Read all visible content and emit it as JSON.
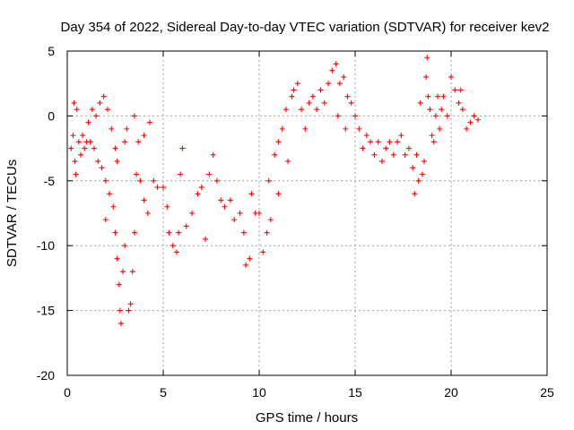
{
  "chart_data": {
    "type": "scatter",
    "title": "Day 354 of 2022, Sidereal Day-to-day VTEC variation (SDTVAR) for receiver kev2",
    "xlabel": "GPS time / hours",
    "ylabel": "SDTVAR / TECUs",
    "xlim": [
      0,
      25
    ],
    "ylim": [
      -20,
      5
    ],
    "xticks": [
      0,
      5,
      10,
      15,
      20,
      25
    ],
    "yticks": [
      5,
      0,
      -5,
      -10,
      -15,
      -20
    ],
    "grid": true,
    "marker": "+",
    "series": [
      {
        "name": "SDTVAR",
        "color": "#ff0000",
        "points": [
          [
            0.2,
            -2.5
          ],
          [
            0.3,
            -1.5
          ],
          [
            0.35,
            1.0
          ],
          [
            0.4,
            -3.5
          ],
          [
            0.45,
            -4.5
          ],
          [
            0.5,
            0.5
          ],
          [
            0.6,
            -2.0
          ],
          [
            0.7,
            -3.0
          ],
          [
            0.8,
            -1.5
          ],
          [
            0.9,
            -2.5
          ],
          [
            1.0,
            -2.0
          ],
          [
            1.1,
            -0.5
          ],
          [
            1.2,
            -2.0
          ],
          [
            1.3,
            0.5
          ],
          [
            1.4,
            -2.5
          ],
          [
            1.5,
            0.0
          ],
          [
            1.6,
            -3.5
          ],
          [
            1.7,
            1.0
          ],
          [
            1.8,
            -4.0
          ],
          [
            1.9,
            1.5
          ],
          [
            2.0,
            -5.0
          ],
          [
            2.0,
            -8.0
          ],
          [
            2.1,
            0.5
          ],
          [
            2.2,
            -6.0
          ],
          [
            2.3,
            -1.0
          ],
          [
            2.4,
            -7.0
          ],
          [
            2.5,
            -2.5
          ],
          [
            2.5,
            -9.0
          ],
          [
            2.6,
            -3.5
          ],
          [
            2.6,
            -11.0
          ],
          [
            2.7,
            -13.0
          ],
          [
            2.75,
            -15.0
          ],
          [
            2.8,
            -16.0
          ],
          [
            2.9,
            -12.0
          ],
          [
            3.0,
            -10.0
          ],
          [
            3.0,
            -2.0
          ],
          [
            3.1,
            -1.0
          ],
          [
            3.2,
            -15.0
          ],
          [
            3.3,
            -14.5
          ],
          [
            3.4,
            -12.0
          ],
          [
            3.5,
            -9.0
          ],
          [
            3.5,
            0.0
          ],
          [
            3.6,
            -4.5
          ],
          [
            3.7,
            -2.0
          ],
          [
            3.8,
            -5.0
          ],
          [
            4.0,
            -6.5
          ],
          [
            4.0,
            -1.5
          ],
          [
            4.2,
            -7.5
          ],
          [
            4.3,
            -0.5
          ],
          [
            4.5,
            -5.0
          ],
          [
            4.7,
            -5.5
          ],
          [
            5.0,
            -5.5
          ],
          [
            5.2,
            -7.0
          ],
          [
            5.3,
            -9.0
          ],
          [
            5.5,
            -10.0
          ],
          [
            5.7,
            -10.5
          ],
          [
            5.8,
            -9.0
          ],
          [
            5.9,
            -4.5
          ],
          [
            6.0,
            -2.5
          ],
          [
            6.2,
            -8.5
          ],
          [
            6.5,
            -7.5
          ],
          [
            6.8,
            -6.0
          ],
          [
            7.0,
            -5.5
          ],
          [
            7.2,
            -9.5
          ],
          [
            7.4,
            -4.5
          ],
          [
            7.6,
            -3.0
          ],
          [
            7.8,
            -5.0
          ],
          [
            8.0,
            -6.5
          ],
          [
            8.2,
            -7.0
          ],
          [
            8.5,
            -6.5
          ],
          [
            8.7,
            -8.0
          ],
          [
            9.0,
            -7.5
          ],
          [
            9.2,
            -9.0
          ],
          [
            9.3,
            -11.5
          ],
          [
            9.5,
            -11.0
          ],
          [
            9.6,
            -6.0
          ],
          [
            9.8,
            -7.5
          ],
          [
            10.0,
            -7.5
          ],
          [
            10.2,
            -10.5
          ],
          [
            10.4,
            -9.0
          ],
          [
            10.5,
            -5.0
          ],
          [
            10.6,
            -8.0
          ],
          [
            10.8,
            -3.0
          ],
          [
            11.0,
            -2.0
          ],
          [
            11.0,
            -6.0
          ],
          [
            11.2,
            -1.0
          ],
          [
            11.4,
            0.5
          ],
          [
            11.5,
            -3.5
          ],
          [
            11.7,
            1.5
          ],
          [
            11.8,
            2.0
          ],
          [
            12.0,
            2.5
          ],
          [
            12.2,
            0.5
          ],
          [
            12.4,
            -1.0
          ],
          [
            12.6,
            1.0
          ],
          [
            12.8,
            1.5
          ],
          [
            13.0,
            0.5
          ],
          [
            13.2,
            2.0
          ],
          [
            13.4,
            1.0
          ],
          [
            13.6,
            2.5
          ],
          [
            13.8,
            3.5
          ],
          [
            14.0,
            4.0
          ],
          [
            14.1,
            0.0
          ],
          [
            14.2,
            2.5
          ],
          [
            14.4,
            3.0
          ],
          [
            14.5,
            -1.0
          ],
          [
            14.6,
            1.5
          ],
          [
            14.8,
            1.0
          ],
          [
            15.0,
            0.0
          ],
          [
            15.2,
            -1.0
          ],
          [
            15.4,
            -2.5
          ],
          [
            15.6,
            -1.5
          ],
          [
            15.8,
            -2.0
          ],
          [
            16.0,
            -3.0
          ],
          [
            16.2,
            -2.0
          ],
          [
            16.4,
            -3.5
          ],
          [
            16.6,
            -2.5
          ],
          [
            16.8,
            -2.0
          ],
          [
            17.0,
            -3.0
          ],
          [
            17.2,
            -2.0
          ],
          [
            17.4,
            -1.5
          ],
          [
            17.6,
            -3.0
          ],
          [
            17.8,
            -2.5
          ],
          [
            18.0,
            -4.0
          ],
          [
            18.1,
            -6.0
          ],
          [
            18.2,
            -3.0
          ],
          [
            18.3,
            -5.0
          ],
          [
            18.4,
            1.0
          ],
          [
            18.5,
            -4.5
          ],
          [
            18.6,
            -3.5
          ],
          [
            18.7,
            3.0
          ],
          [
            18.75,
            4.5
          ],
          [
            18.8,
            1.5
          ],
          [
            18.9,
            0.5
          ],
          [
            19.0,
            -1.5
          ],
          [
            19.1,
            -2.0
          ],
          [
            19.2,
            0.0
          ],
          [
            19.3,
            1.5
          ],
          [
            19.4,
            -1.0
          ],
          [
            19.5,
            0.5
          ],
          [
            19.6,
            1.5
          ],
          [
            19.8,
            0.0
          ],
          [
            20.0,
            3.0
          ],
          [
            20.2,
            2.0
          ],
          [
            20.4,
            1.0
          ],
          [
            20.5,
            2.0
          ],
          [
            20.6,
            0.5
          ],
          [
            20.8,
            -1.0
          ],
          [
            21.0,
            -0.5
          ],
          [
            21.2,
            0.0
          ],
          [
            21.4,
            -0.3
          ]
        ]
      }
    ]
  }
}
